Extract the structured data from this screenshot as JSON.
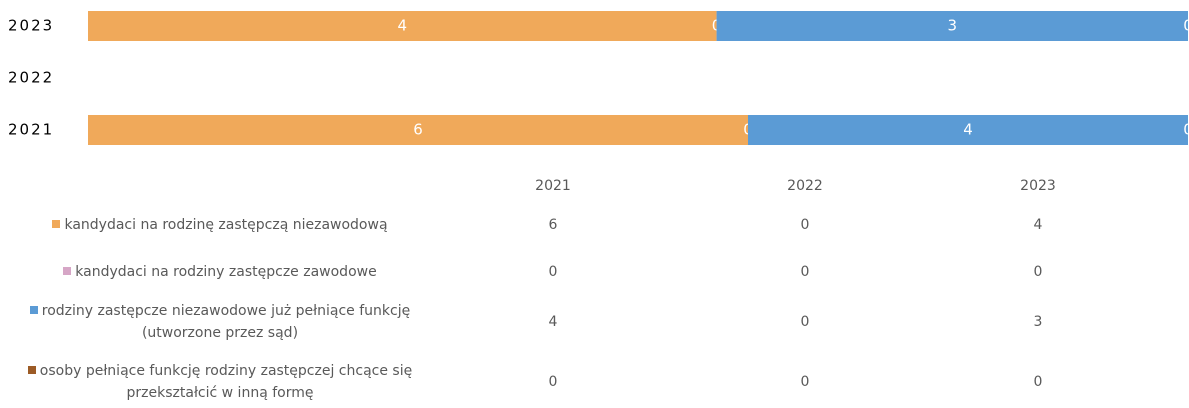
{
  "chart_data": {
    "type": "bar",
    "orientation": "horizontal",
    "stacking": "percent",
    "categories": [
      "2021",
      "2022",
      "2023"
    ],
    "series": [
      {
        "name": "kandydaci na rodzinę zastępczą niezawodową",
        "color": "#f0a95a",
        "values": [
          6,
          0,
          4
        ]
      },
      {
        "name": "kandydaci na rodziny zastępcze zawodowe",
        "color": "#d6a6c6",
        "values": [
          0,
          0,
          0
        ]
      },
      {
        "name": "rodziny zastępcze niezawodowe już pełniące funkcję (utworzone przez sąd)",
        "color": "#5b9bd5",
        "values": [
          4,
          0,
          3
        ]
      },
      {
        "name": "osoby pełniące funkcję rodziny zastępczej chcące się przekształcić w inną formę",
        "color": "#9c5b26",
        "values": [
          0,
          0,
          0
        ]
      }
    ],
    "data_table": true
  }
}
